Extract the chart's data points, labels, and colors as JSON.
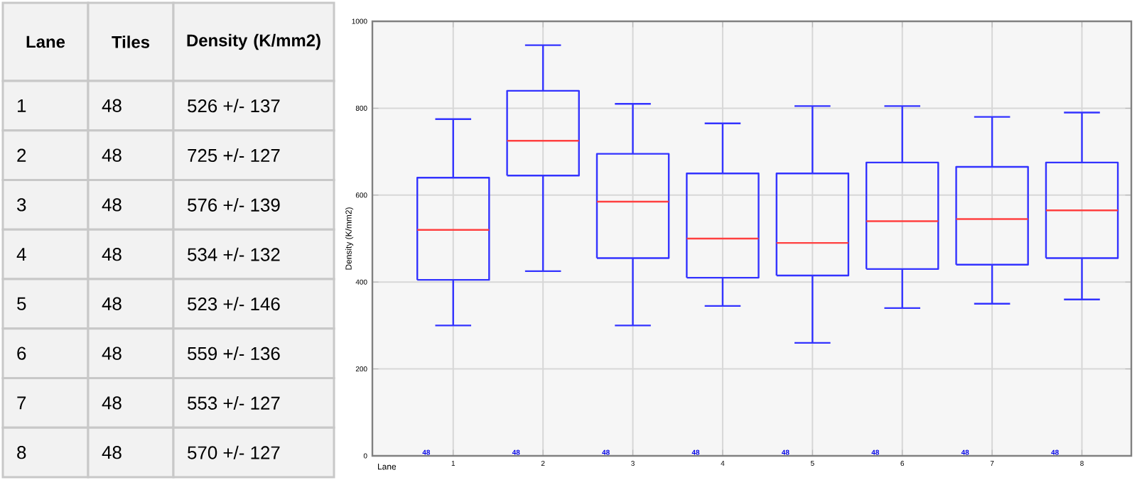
{
  "chart_data": {
    "type": "box",
    "xlabel": "Lane",
    "ylabel": "Density (K/mm2)",
    "categories": [
      "1",
      "2",
      "3",
      "4",
      "5",
      "6",
      "7",
      "8"
    ],
    "color": "#3333ff",
    "boxes": [
      {
        "low": 300,
        "q1": 405,
        "median": 520,
        "q3": 640,
        "high": 775
      },
      {
        "low": 425,
        "q1": 645,
        "median": 725,
        "q3": 840,
        "high": 945
      },
      {
        "low": 300,
        "q1": 455,
        "median": 585,
        "q3": 695,
        "high": 810
      },
      {
        "low": 345,
        "q1": 410,
        "median": 500,
        "q3": 650,
        "high": 765
      },
      {
        "low": 260,
        "q1": 415,
        "median": 490,
        "q3": 650,
        "high": 805
      },
      {
        "low": 340,
        "q1": 430,
        "median": 540,
        "q3": 675,
        "high": 805
      },
      {
        "low": 350,
        "q1": 440,
        "median": 545,
        "q3": 665,
        "high": 780
      },
      {
        "low": 360,
        "q1": 455,
        "median": 565,
        "q3": 675,
        "high": 790
      }
    ],
    "ylim": [
      0,
      1000
    ],
    "yticks": [
      0,
      200,
      400,
      600,
      800,
      1000
    ],
    "grid": true,
    "annotations": [
      "Lane",
      "Tiles",
      "Density (K/mm2)",
      "1",
      "48",
      "526 +/- 137",
      "2",
      "48",
      "725 +/- 127",
      "3",
      "48",
      "576 +/- 139",
      "4",
      "48",
      "534 +/- 132",
      "5",
      "48",
      "523 +/- 146",
      "6",
      "48",
      "559 +/- 136",
      "7",
      "48",
      "553 +/- 127",
      "8",
      "48",
      "570 +/- 127",
      "48",
      "48",
      "48",
      "48",
      "48",
      "48",
      "48",
      "48"
    ]
  }
}
